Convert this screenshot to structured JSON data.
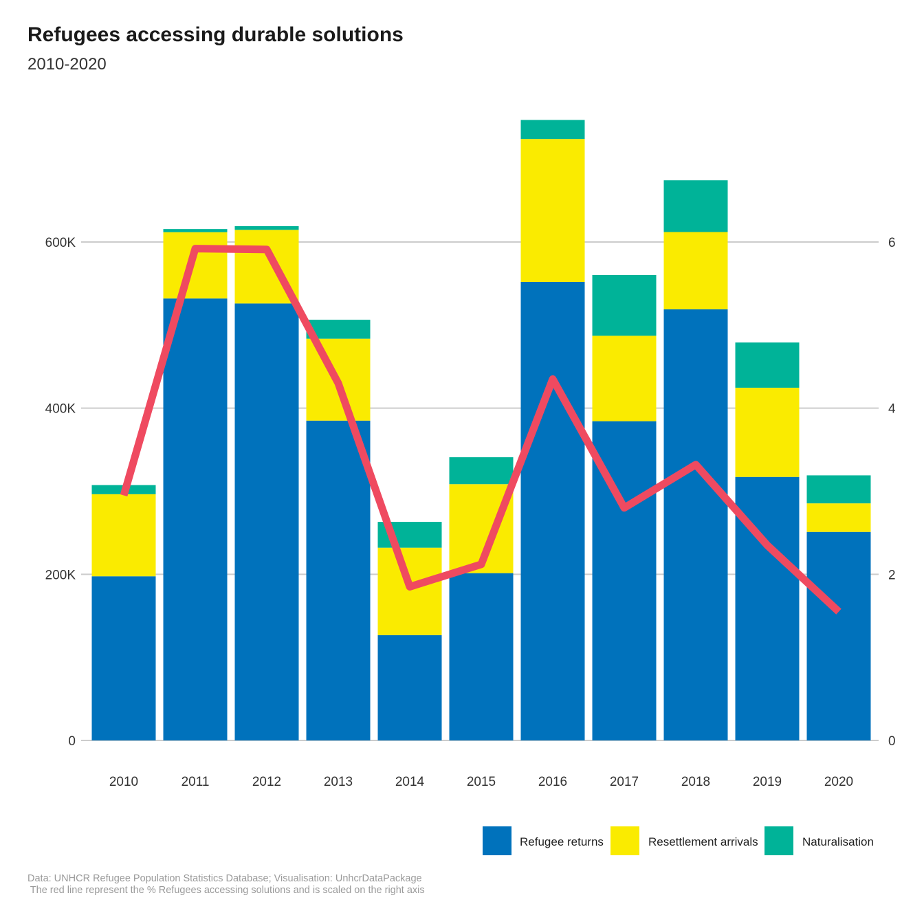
{
  "title": "Refugees accessing durable solutions",
  "subtitle": "2010-2020",
  "caption_line1": "Data: UNHCR Refugee Population Statistics Database; Visualisation: UnhcrDataPackage",
  "caption_line2": " The red line represent the % Refugees accessing solutions and is scaled on the right axis",
  "colors": {
    "refugee_returns": "#0072BC",
    "resettlement_arrivals": "#FAEB00",
    "naturalisation": "#00B398",
    "line": "#EF4A60",
    "grid": "#cccccc"
  },
  "chart_data": {
    "type": "bar",
    "stacked": true,
    "categories": [
      "2010",
      "2011",
      "2012",
      "2013",
      "2014",
      "2015",
      "2016",
      "2017",
      "2018",
      "2019",
      "2020"
    ],
    "series": [
      {
        "name": "Refugee returns",
        "values": [
          197600,
          532000,
          526000,
          385000,
          126800,
          201400,
          552000,
          384300,
          519000,
          317200,
          251000
        ]
      },
      {
        "name": "Resettlement arrivals",
        "values": [
          98800,
          79800,
          88600,
          98600,
          105200,
          107100,
          172000,
          102800,
          93000,
          107400,
          34400
        ]
      },
      {
        "name": "Naturalisation",
        "values": [
          11000,
          3800,
          4500,
          22800,
          31100,
          32400,
          22900,
          73200,
          62300,
          54400,
          33700
        ]
      }
    ],
    "line_series": {
      "values": [
        2.95,
        5.92,
        5.91,
        4.3,
        1.85,
        2.12,
        4.35,
        2.8,
        3.32,
        2.35,
        1.55
      ],
      "axis": "right"
    },
    "left_axis": {
      "ylim": [
        0,
        600000
      ],
      "ticks": [
        0,
        200000,
        400000,
        600000
      ],
      "tick_labels": [
        "0",
        "200K",
        "400K",
        "600K"
      ]
    },
    "right_axis": {
      "ylim": [
        0,
        6
      ],
      "ticks": [
        0,
        2,
        4,
        6
      ],
      "tick_labels": [
        "0",
        "2",
        "4",
        "6"
      ]
    },
    "grid": true,
    "legend_position": "bottom-right"
  }
}
